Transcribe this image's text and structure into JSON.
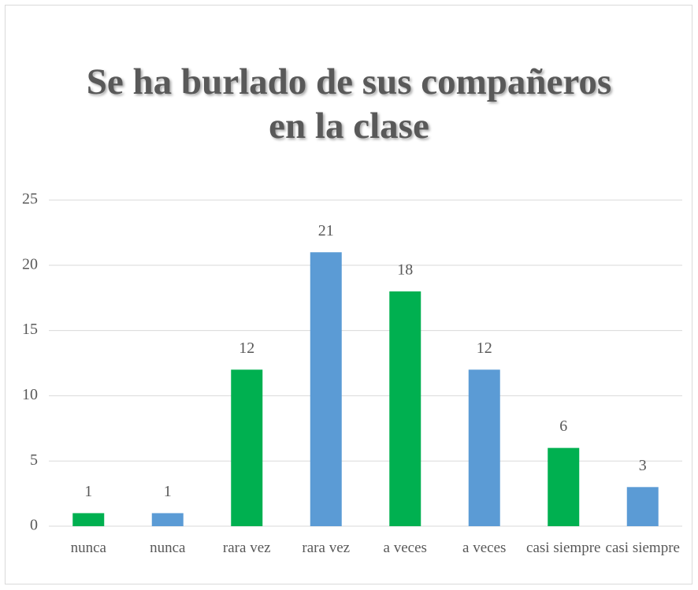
{
  "chart_data": {
    "type": "bar",
    "title": "Se ha burlado de sus compañeros en la clase",
    "categories": [
      "nunca",
      "nunca",
      "rara vez",
      "rara vez",
      "a veces",
      "a veces",
      "casi siempre",
      "casi siempre"
    ],
    "values": [
      1,
      1,
      12,
      21,
      18,
      12,
      6,
      3
    ],
    "colors": [
      "#00b050",
      "#5b9bd5",
      "#00b050",
      "#5b9bd5",
      "#00b050",
      "#5b9bd5",
      "#00b050",
      "#5b9bd5"
    ],
    "ylim": [
      0,
      25
    ],
    "yticks": [
      0,
      5,
      10,
      15,
      20,
      25
    ],
    "grid": true
  }
}
